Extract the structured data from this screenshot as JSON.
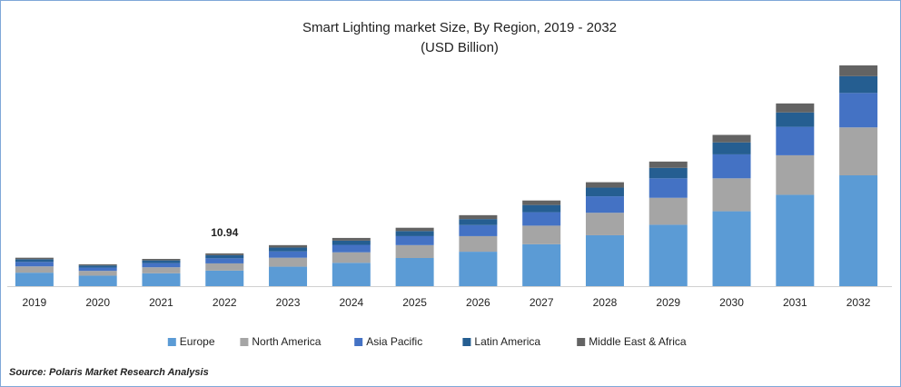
{
  "chart_data": {
    "type": "stacked_bar",
    "title": "Smart Lighting market Size, By Region, 2019 - 2032",
    "subtitle": "(USD Billion)",
    "categories": [
      "2019",
      "2020",
      "2021",
      "2022",
      "2023",
      "2024",
      "2025",
      "2026",
      "2027",
      "2028",
      "2029",
      "2030",
      "2031",
      "2032"
    ],
    "series": [
      {
        "name": "Europe",
        "color": "#5b9bd5",
        "values": [
          4.5,
          3.5,
          4.3,
          5.2,
          6.5,
          7.8,
          9.4,
          11.5,
          14.0,
          17.0,
          20.5,
          25.0,
          30.5,
          37.0
        ]
      },
      {
        "name": "North America",
        "color": "#a5a5a5",
        "values": [
          2.1,
          1.6,
          2.0,
          2.4,
          3.0,
          3.5,
          4.3,
          5.2,
          6.2,
          7.5,
          9.0,
          11.0,
          13.2,
          16.0
        ]
      },
      {
        "name": "Asia Pacific",
        "color": "#4472c4",
        "values": [
          1.5,
          1.1,
          1.4,
          1.7,
          2.1,
          2.5,
          3.0,
          3.7,
          4.5,
          5.5,
          6.5,
          8.0,
          9.5,
          11.5
        ]
      },
      {
        "name": "Latin America",
        "color": "#255e91",
        "values": [
          0.9,
          0.7,
          0.9,
          1.05,
          1.3,
          1.4,
          1.7,
          2.0,
          2.4,
          2.9,
          3.5,
          4.0,
          4.8,
          5.6
        ]
      },
      {
        "name": "Middle East & Africa",
        "color": "#636363",
        "values": [
          0.5,
          0.4,
          0.5,
          0.59,
          0.8,
          0.9,
          1.1,
          1.3,
          1.5,
          1.8,
          2.1,
          2.5,
          3.0,
          3.6
        ]
      }
    ],
    "annotation": {
      "x": "2022",
      "value": 10.94
    },
    "legend": "bottom",
    "source": "Source: Polaris  Market Research Analysis"
  }
}
